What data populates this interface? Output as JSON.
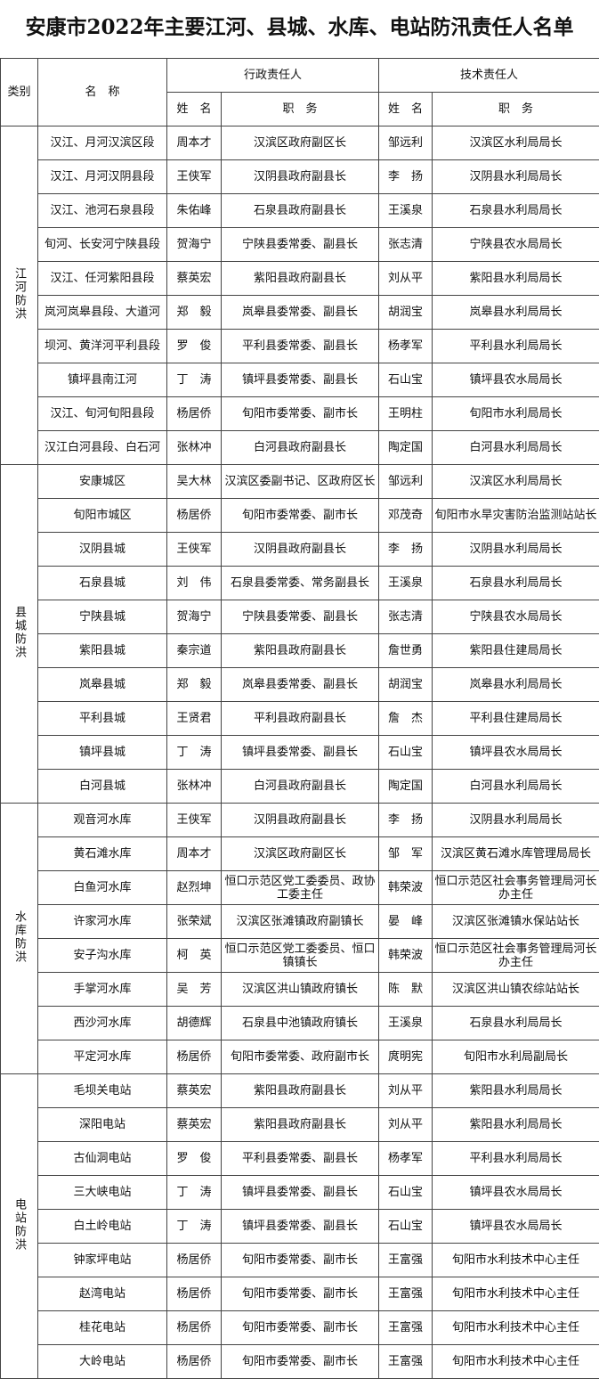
{
  "title": "安康市2022年主要江河、县城、水库、电站防汛责任人名单",
  "header": {
    "category": "类别",
    "name": "名　称",
    "admin": "行政责任人",
    "tech": "技术责任人",
    "admin_name": "姓　名",
    "admin_duty": "职　务",
    "tech_name": "姓　名",
    "tech_duty": "职　务"
  },
  "groups": [
    {
      "category": "江河防洪",
      "rows": [
        [
          "汉江、月河汉滨区段",
          "周本才",
          "汉滨区政府副区长",
          "邹远利",
          "汉滨区水利局局长"
        ],
        [
          "汉江、月河汉阴县段",
          "王侠军",
          "汉阴县政府副县长",
          "李　扬",
          "汉阴县水利局局长"
        ],
        [
          "汉江、池河石泉县段",
          "朱佑峰",
          "石泉县政府副县长",
          "王溪泉",
          "石泉县水利局局长"
        ],
        [
          "旬河、长安河宁陕县段",
          "贺海宁",
          "宁陕县委常委、副县长",
          "张志清",
          "宁陕县农水局局长"
        ],
        [
          "汉江、任河紫阳县段",
          "蔡英宏",
          "紫阳县政府副县长",
          "刘从平",
          "紫阳县水利局局长"
        ],
        [
          "岚河岚皋县段、大道河",
          "郑　毅",
          "岚皋县委常委、副县长",
          "胡润宝",
          "岚皋县水利局局长"
        ],
        [
          "坝河、黄洋河平利县段",
          "罗　俊",
          "平利县委常委、副县长",
          "杨孝军",
          "平利县水利局局长"
        ],
        [
          "镇坪县南江河",
          "丁　涛",
          "镇坪县委常委、副县长",
          "石山宝",
          "镇坪县农水局局长"
        ],
        [
          "汉江、旬河旬阳县段",
          "杨居侨",
          "旬阳市委常委、副市长",
          "王明柱",
          "旬阳市水利局局长"
        ],
        [
          "汉江白河县段、白石河",
          "张林冲",
          "白河县政府副县长",
          "陶定国",
          "白河县水利局局长"
        ]
      ]
    },
    {
      "category": "县城防洪",
      "rows": [
        [
          "安康城区",
          "吴大林",
          "汉滨区委副书记、区政府区长",
          "邹远利",
          "汉滨区水利局局长"
        ],
        [
          "旬阳市城区",
          "杨居侨",
          "旬阳市委常委、副市长",
          "邓茂奇",
          "旬阳市水旱灾害防治监测站站长"
        ],
        [
          "汉阴县城",
          "王侠军",
          "汉阴县政府副县长",
          "李　扬",
          "汉阴县水利局局长"
        ],
        [
          "石泉县城",
          "刘　伟",
          "石泉县委常委、常务副县长",
          "王溪泉",
          "石泉县水利局局长"
        ],
        [
          "宁陕县城",
          "贺海宁",
          "宁陕县委常委、副县长",
          "张志清",
          "宁陕县农水局局长"
        ],
        [
          "紫阳县城",
          "秦宗道",
          "紫阳县政府副县长",
          "詹世勇",
          "紫阳县住建局局长"
        ],
        [
          "岚皋县城",
          "郑　毅",
          "岚皋县委常委、副县长",
          "胡润宝",
          "岚皋县水利局局长"
        ],
        [
          "平利县城",
          "王贤君",
          "平利县政府副县长",
          "詹　杰",
          "平利县住建局局长"
        ],
        [
          "镇坪县城",
          "丁　涛",
          "镇坪县委常委、副县长",
          "石山宝",
          "镇坪县农水局局长"
        ],
        [
          "白河县城",
          "张林冲",
          "白河县政府副县长",
          "陶定国",
          "白河县水利局局长"
        ]
      ]
    },
    {
      "category": "水库防洪",
      "rows": [
        [
          "观音河水库",
          "王侠军",
          "汉阴县政府副县长",
          "李　扬",
          "汉阴县水利局局长"
        ],
        [
          "黄石滩水库",
          "周本才",
          "汉滨区政府副区长",
          "邹　军",
          "汉滨区黄石滩水库管理局局长"
        ],
        [
          "白鱼河水库",
          "赵烈坤",
          "恒口示范区党工委委员、政协工委主任",
          "韩荣波",
          "恒口示范区社会事务管理局河长办主任"
        ],
        [
          "许家河水库",
          "张荣斌",
          "汉滨区张滩镇政府副镇长",
          "晏　峰",
          "汉滨区张滩镇水保站站长"
        ],
        [
          "安子沟水库",
          "柯　英",
          "恒口示范区党工委委员、恒口镇镇长",
          "韩荣波",
          "恒口示范区社会事务管理局河长办主任"
        ],
        [
          "手掌河水库",
          "吴　芳",
          "汉滨区洪山镇政府镇长",
          "陈　默",
          "汉滨区洪山镇农综站站长"
        ],
        [
          "西沙河水库",
          "胡德辉",
          "石泉县中池镇政府镇长",
          "王溪泉",
          "石泉县水利局局长"
        ],
        [
          "平定河水库",
          "杨居侨",
          "旬阳市委常委、政府副市长",
          "庹明宪",
          "旬阳市水利局副局长"
        ]
      ]
    },
    {
      "category": "电站防洪",
      "rows": [
        [
          "毛坝关电站",
          "蔡英宏",
          "紫阳县政府副县长",
          "刘从平",
          "紫阳县水利局局长"
        ],
        [
          "深阳电站",
          "蔡英宏",
          "紫阳县政府副县长",
          "刘从平",
          "紫阳县水利局局长"
        ],
        [
          "古仙洞电站",
          "罗　俊",
          "平利县委常委、副县长",
          "杨孝军",
          "平利县水利局局长"
        ],
        [
          "三大峡电站",
          "丁　涛",
          "镇坪县委常委、副县长",
          "石山宝",
          "镇坪县农水局局长"
        ],
        [
          "白土岭电站",
          "丁　涛",
          "镇坪县委常委、副县长",
          "石山宝",
          "镇坪县农水局局长"
        ],
        [
          "钟家坪电站",
          "杨居侨",
          "旬阳市委常委、副市长",
          "王富强",
          "旬阳市水利技术中心主任"
        ],
        [
          "赵湾电站",
          "杨居侨",
          "旬阳市委常委、副市长",
          "王富强",
          "旬阳市水利技术中心主任"
        ],
        [
          "桂花电站",
          "杨居侨",
          "旬阳市委常委、副市长",
          "王富强",
          "旬阳市水利技术中心主任"
        ],
        [
          "大岭电站",
          "杨居侨",
          "旬阳市委常委、副市长",
          "王富强",
          "旬阳市水利技术中心主任"
        ]
      ]
    }
  ]
}
